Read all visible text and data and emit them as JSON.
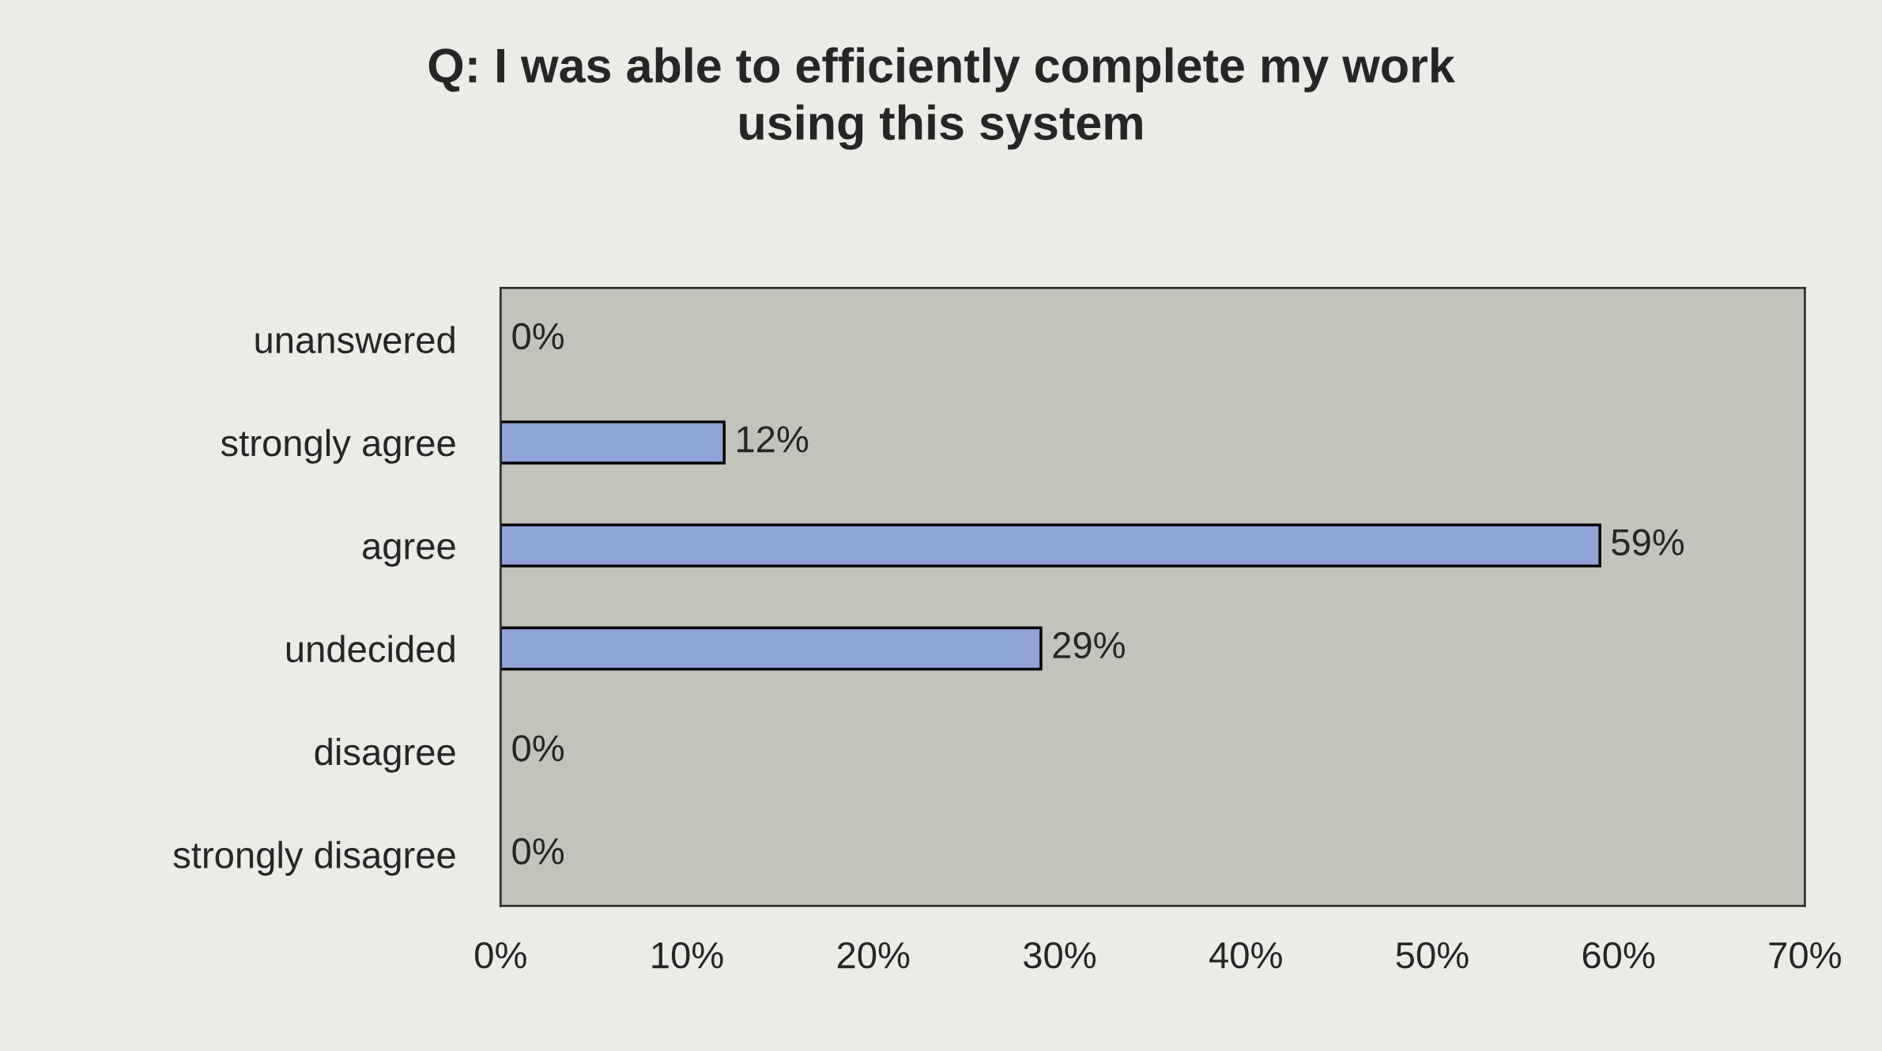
{
  "chart_data": {
    "type": "bar",
    "orientation": "horizontal",
    "title": "Q: I was able to efficiently complete my work\nusing this system",
    "categories": [
      "unanswered",
      "strongly agree",
      "agree",
      "undecided",
      "disagree",
      "strongly disagree"
    ],
    "values": [
      0,
      12,
      59,
      29,
      0,
      0
    ],
    "value_labels": [
      "0%",
      "12%",
      "59%",
      "29%",
      "0%",
      "0%"
    ],
    "color": "#8fa3d9",
    "xlim": [
      0,
      70
    ],
    "xticks": [
      {
        "value": 0,
        "label": "0%"
      },
      {
        "value": 10,
        "label": "10%"
      },
      {
        "value": 20,
        "label": "20%"
      },
      {
        "value": 30,
        "label": "30%"
      },
      {
        "value": 40,
        "label": "40%"
      },
      {
        "value": 50,
        "label": "50%"
      },
      {
        "value": 60,
        "label": "60%"
      },
      {
        "value": 70,
        "label": "70%"
      }
    ],
    "grid": false,
    "legend": false
  }
}
